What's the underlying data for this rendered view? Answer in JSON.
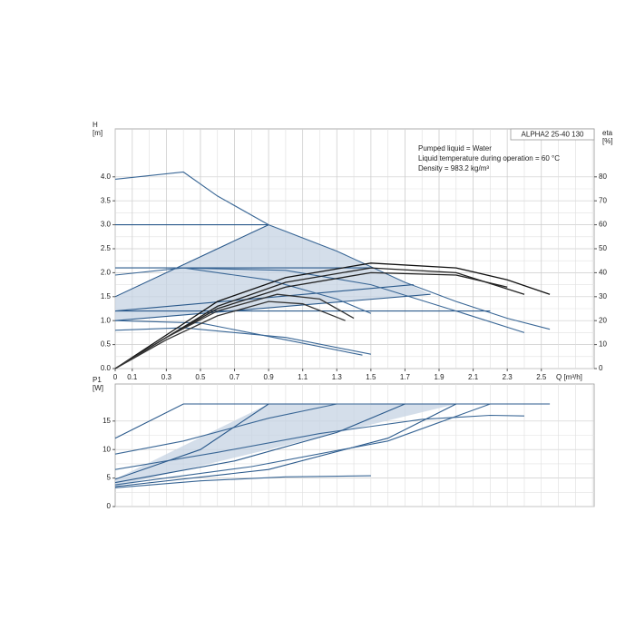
{
  "chart_data": [
    {
      "type": "line",
      "info_title": "ALPHA2 25-40 130",
      "info_lines": [
        "Pumped liquid = Water",
        "Liquid temperature during operation = 60 °C",
        "Density = 983.2 kg/m³"
      ],
      "ylabel": "H",
      "yunit": "[m]",
      "y2label": "eta",
      "y2unit": "[%]",
      "xlabel": "Q [m³/h]",
      "xlim": [
        0,
        2.81
      ],
      "ylim": [
        0,
        5
      ],
      "y2lim": [
        0,
        100
      ],
      "grid": true,
      "xticks": [
        0,
        0.1,
        0.3,
        0.5,
        0.7,
        0.9,
        1.1,
        1.3,
        1.5,
        1.7,
        1.9,
        2.1,
        2.3,
        2.5
      ],
      "yticks": [
        {
          "value": 0,
          "label": "0.0"
        },
        0.5,
        {
          "value": 1,
          "label": "1.0"
        },
        1.5,
        {
          "value": 2,
          "label": "2.0"
        },
        2.5,
        {
          "value": 3,
          "label": "3.0"
        },
        3.5,
        {
          "value": 4,
          "label": "4.0"
        }
      ],
      "y2ticks": [
        0,
        10,
        20,
        30,
        40,
        50,
        60,
        70,
        80
      ],
      "series": [
        {
          "kind": "area",
          "color": "#c5d3e3",
          "x": [
            0,
            0.9,
            1.3,
            1.7,
            1.85,
            0
          ],
          "values": [
            1.5,
            3.0,
            2.45,
            1.8,
            1.55,
            1.0
          ]
        },
        {
          "color": "#3a6796",
          "x": [
            0,
            0.4,
            0.6,
            0.9,
            1.3,
            1.7,
            2.0,
            2.3,
            2.55
          ],
          "values": [
            3.95,
            4.1,
            3.6,
            3.0,
            2.45,
            1.8,
            1.4,
            1.05,
            0.82
          ]
        },
        {
          "color": "#2b5a8c",
          "x": [
            0,
            0.9
          ],
          "values": [
            3.0,
            3.0
          ]
        },
        {
          "color": "#2b5a8c",
          "x": [
            0,
            1.5
          ],
          "values": [
            2.1,
            2.1
          ]
        },
        {
          "color": "#2b5a8c",
          "x": [
            0,
            2.2
          ],
          "values": [
            1.2,
            1.2
          ]
        },
        {
          "color": "#2b5a8c",
          "x": [
            0,
            0.9
          ],
          "values": [
            1.5,
            3.0
          ]
        },
        {
          "color": "#2b5a8c",
          "x": [
            0,
            1.85
          ],
          "values": [
            1.0,
            1.55
          ]
        },
        {
          "color": "#2b5a8c",
          "x": [
            0,
            1.75
          ],
          "values": [
            1.2,
            1.75
          ]
        },
        {
          "color": "#3a6796",
          "x": [
            0,
            0.4,
            0.9,
            1.3,
            1.5
          ],
          "values": [
            1.95,
            2.1,
            1.85,
            1.45,
            1.15
          ]
        },
        {
          "color": "#3a6796",
          "x": [
            0.35,
            1.0,
            1.5,
            2.0,
            2.4
          ],
          "values": [
            2.1,
            2.05,
            1.75,
            1.2,
            0.75
          ]
        },
        {
          "color": "#3a6796",
          "x": [
            0,
            0.4,
            1.0,
            1.5
          ],
          "values": [
            0.8,
            0.85,
            0.65,
            0.3
          ]
        },
        {
          "color": "#3a6796",
          "x": [
            0,
            0.5,
            1.0,
            1.45
          ],
          "values": [
            1.0,
            0.95,
            0.6,
            0.28
          ]
        },
        {
          "axis": "y2",
          "color": "#111111",
          "x": [
            0,
            0.3,
            0.6,
            1.0,
            1.5,
            2.0,
            2.3,
            2.55
          ],
          "values": [
            0,
            14,
            28,
            38,
            44,
            42,
            37,
            31
          ]
        },
        {
          "axis": "y2",
          "color": "#222222",
          "x": [
            0,
            0.3,
            0.6,
            1.0,
            1.5,
            2.0,
            2.4
          ],
          "values": [
            0,
            13,
            26,
            36,
            42,
            40,
            31
          ]
        },
        {
          "axis": "y2",
          "color": "#222222",
          "x": [
            0,
            0.3,
            0.6,
            1.0,
            1.5,
            2.0,
            2.3
          ],
          "values": [
            0,
            13,
            25,
            34,
            40,
            39,
            34
          ]
        },
        {
          "axis": "y2",
          "color": "#333333",
          "x": [
            0,
            0.3,
            0.6,
            0.95,
            1.2,
            1.4
          ],
          "values": [
            0,
            13,
            24,
            31,
            29,
            21
          ]
        },
        {
          "axis": "y2",
          "color": "#333333",
          "x": [
            0,
            0.3,
            0.6,
            0.9,
            1.1,
            1.35
          ],
          "values": [
            0,
            12,
            22,
            28,
            27,
            20
          ]
        }
      ]
    },
    {
      "type": "line",
      "ylabel": "P1",
      "yunit": "[W]",
      "xlim": [
        0,
        2.81
      ],
      "ylim": [
        0,
        21.5
      ],
      "grid": true,
      "yticks": [
        0,
        5,
        10,
        15
      ],
      "series": [
        {
          "kind": "area",
          "color": "#c5d3e3",
          "x": [
            0,
            0.9,
            2.0,
            0
          ],
          "values": [
            4.8,
            18,
            18,
            3.5
          ]
        },
        {
          "color": "#2b5a8c",
          "x": [
            0,
            0.4,
            2.55
          ],
          "values": [
            12,
            18,
            18
          ]
        },
        {
          "color": "#3a6796",
          "x": [
            0,
            0.4,
            0.9,
            1.3,
            1.5
          ],
          "values": [
            9.2,
            11.5,
            15.5,
            18,
            18
          ]
        },
        {
          "color": "#3a6796",
          "x": [
            0,
            0.6,
            1.2,
            1.8,
            2.2,
            2.4
          ],
          "values": [
            6.5,
            9.5,
            12.8,
            15.3,
            16,
            15.9
          ]
        },
        {
          "color": "#2b5a8c",
          "x": [
            0,
            0.5,
            0.9
          ],
          "values": [
            4.8,
            10,
            18
          ]
        },
        {
          "color": "#2b5a8c",
          "x": [
            0,
            0.7,
            1.3,
            1.7
          ],
          "values": [
            4.2,
            8,
            13,
            18
          ]
        },
        {
          "color": "#2b5a8c",
          "x": [
            0,
            0.9,
            1.6,
            2.0
          ],
          "values": [
            3.5,
            6.5,
            12,
            18
          ]
        },
        {
          "color": "#3a6796",
          "x": [
            0,
            0.8,
            1.6,
            2.2
          ],
          "values": [
            3.8,
            7,
            11.5,
            18
          ]
        },
        {
          "color": "#3a6796",
          "x": [
            0,
            0.5,
            1.0,
            1.5
          ],
          "values": [
            3.3,
            4.5,
            5.2,
            5.4
          ]
        }
      ]
    }
  ]
}
